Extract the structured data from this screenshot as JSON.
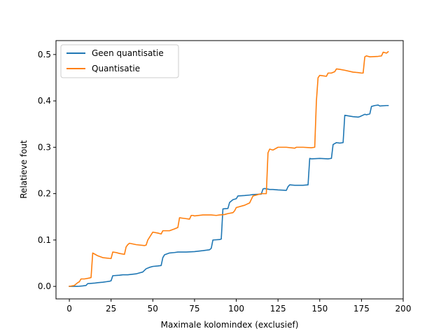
{
  "chart_data": {
    "type": "line",
    "xlabel": "Maximale kolomindex (exclusief)",
    "ylabel": "Relatieve fout",
    "xlim": [
      -8,
      200
    ],
    "ylim": [
      -0.027,
      0.53
    ],
    "xticks": [
      0,
      25,
      50,
      75,
      100,
      125,
      150,
      175,
      200
    ],
    "yticks": [
      0.0,
      0.1,
      0.2,
      0.3,
      0.4,
      0.5
    ],
    "ytick_labels": [
      "0.0",
      "0.1",
      "0.2",
      "0.3",
      "0.4",
      "0.5"
    ],
    "grid": false,
    "legend_position": "upper left",
    "series": [
      {
        "name": "Geen quantisatie",
        "color": "#1f77b4",
        "x": [
          0,
          5,
          8,
          10,
          11,
          15,
          17,
          20,
          22,
          24,
          25,
          26,
          30,
          32,
          35,
          40,
          42,
          44,
          46,
          48,
          50,
          53,
          55,
          56,
          57,
          60,
          63,
          65,
          67,
          70,
          75,
          80,
          84,
          85,
          86,
          90,
          91,
          92,
          95,
          96,
          98,
          100,
          101,
          105,
          108,
          110,
          115,
          116,
          117,
          120,
          122,
          125,
          130,
          131,
          132,
          135,
          140,
          143,
          144,
          145,
          150,
          155,
          157,
          158,
          160,
          162,
          164,
          165,
          170,
          173,
          174,
          177,
          178,
          180,
          181,
          183,
          185,
          186,
          190,
          191
        ],
        "y": [
          0.0,
          0.0,
          0.001,
          0.002,
          0.006,
          0.007,
          0.008,
          0.009,
          0.01,
          0.011,
          0.012,
          0.023,
          0.024,
          0.025,
          0.025,
          0.027,
          0.029,
          0.031,
          0.038,
          0.041,
          0.043,
          0.044,
          0.045,
          0.062,
          0.068,
          0.072,
          0.073,
          0.074,
          0.074,
          0.074,
          0.075,
          0.077,
          0.079,
          0.082,
          0.1,
          0.101,
          0.102,
          0.167,
          0.168,
          0.181,
          0.187,
          0.189,
          0.195,
          0.196,
          0.197,
          0.198,
          0.199,
          0.21,
          0.211,
          0.209,
          0.209,
          0.208,
          0.207,
          0.215,
          0.219,
          0.218,
          0.218,
          0.219,
          0.276,
          0.275,
          0.276,
          0.275,
          0.276,
          0.306,
          0.31,
          0.309,
          0.31,
          0.369,
          0.366,
          0.365,
          0.366,
          0.371,
          0.37,
          0.372,
          0.388,
          0.39,
          0.391,
          0.389,
          0.39,
          0.39
        ]
      },
      {
        "name": "Quantisatie",
        "color": "#ff7f0e",
        "x": [
          0,
          3,
          5,
          6,
          7,
          9,
          12,
          13,
          14,
          15,
          17,
          20,
          25,
          26,
          28,
          30,
          33,
          34,
          35,
          36,
          40,
          45,
          46,
          47,
          50,
          53,
          55,
          56,
          60,
          63,
          65,
          66,
          68,
          70,
          72,
          73,
          74,
          75,
          80,
          85,
          88,
          90,
          93,
          95,
          98,
          99,
          100,
          105,
          108,
          110,
          115,
          117,
          118,
          119,
          120,
          122,
          125,
          130,
          135,
          136,
          140,
          145,
          147,
          148,
          149,
          150,
          152,
          154,
          155,
          157,
          159,
          160,
          162,
          165,
          170,
          173,
          175,
          176,
          177,
          178,
          180,
          185,
          187,
          188,
          190,
          191
        ],
        "y": [
          0.0,
          0.002,
          0.008,
          0.01,
          0.016,
          0.016,
          0.018,
          0.019,
          0.072,
          0.07,
          0.066,
          0.062,
          0.06,
          0.074,
          0.073,
          0.071,
          0.069,
          0.085,
          0.09,
          0.093,
          0.09,
          0.088,
          0.089,
          0.1,
          0.117,
          0.115,
          0.113,
          0.12,
          0.12,
          0.124,
          0.127,
          0.148,
          0.147,
          0.146,
          0.145,
          0.153,
          0.153,
          0.152,
          0.154,
          0.154,
          0.153,
          0.154,
          0.155,
          0.157,
          0.159,
          0.163,
          0.17,
          0.175,
          0.18,
          0.195,
          0.2,
          0.2,
          0.2,
          0.288,
          0.296,
          0.294,
          0.3,
          0.3,
          0.298,
          0.3,
          0.3,
          0.299,
          0.3,
          0.4,
          0.45,
          0.455,
          0.454,
          0.453,
          0.46,
          0.46,
          0.463,
          0.469,
          0.468,
          0.466,
          0.462,
          0.461,
          0.46,
          0.46,
          0.495,
          0.497,
          0.495,
          0.496,
          0.497,
          0.505,
          0.503,
          0.506
        ]
      }
    ]
  }
}
